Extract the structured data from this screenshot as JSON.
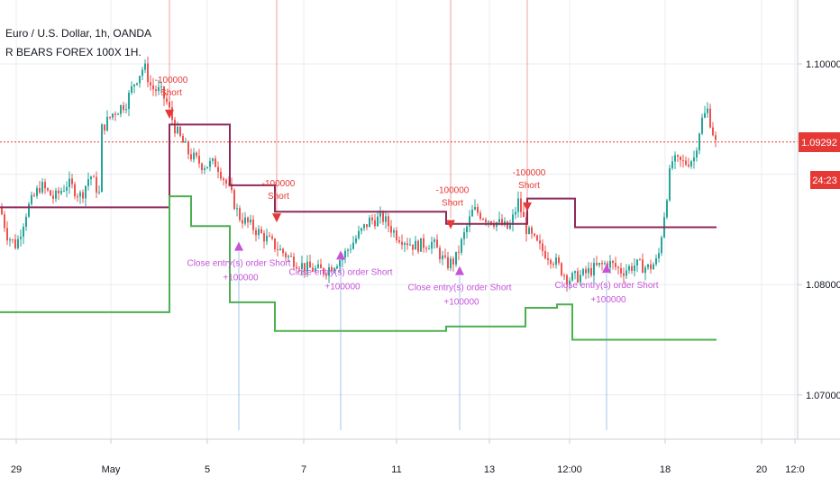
{
  "header": {
    "symbol": "Euro / U.S. Dollar, 1h, OANDA",
    "strategy": "R BEARS FOREX 100X 1H."
  },
  "colors": {
    "bull": "#26a69a",
    "bear": "#ef5350",
    "trade_line": "#8e2a5a",
    "stop_line": "#4caf50",
    "short_signal": "#e53935",
    "close_signal": "#c653d9",
    "current_price_line": "#e53935",
    "grid": "#e8ecf0"
  },
  "chart_data": {
    "type": "candlestick",
    "instrument": "Euro / U.S. Dollar",
    "interval": "1h",
    "source": "OANDA",
    "ylim": [
      1.0645,
      1.1055
    ],
    "y_ticks": [
      "1.10000",
      "1.08000",
      "1.07000"
    ],
    "x_ticks": [
      "29",
      "May",
      "5",
      "7",
      "11",
      "13",
      "12:00",
      "18",
      "20",
      "12:0"
    ],
    "last_price": "1.09292",
    "countdown": "24:23",
    "price_path": [
      [
        0,
        1.087
      ],
      [
        8,
        1.0845
      ],
      [
        18,
        1.0835
      ],
      [
        30,
        1.0868
      ],
      [
        45,
        1.089
      ],
      [
        60,
        1.0878
      ],
      [
        75,
        1.0892
      ],
      [
        90,
        1.088
      ],
      [
        100,
        1.09
      ],
      [
        110,
        1.0882
      ],
      [
        112,
        1.094
      ],
      [
        125,
        1.0955
      ],
      [
        140,
        1.0965
      ],
      [
        150,
        1.0985
      ],
      [
        160,
        1.0998
      ],
      [
        168,
        1.0978
      ],
      [
        178,
        1.0975
      ],
      [
        185,
        1.0965
      ],
      [
        195,
        1.094
      ],
      [
        210,
        1.0918
      ],
      [
        225,
        1.0908
      ],
      [
        240,
        1.091
      ],
      [
        255,
        1.0885
      ],
      [
        265,
        1.0862
      ],
      [
        280,
        1.0852
      ],
      [
        295,
        1.0842
      ],
      [
        305,
        1.0835
      ],
      [
        320,
        1.0825
      ],
      [
        340,
        1.0815
      ],
      [
        360,
        1.0812
      ],
      [
        380,
        1.0825
      ],
      [
        395,
        1.0842
      ],
      [
        410,
        1.0858
      ],
      [
        425,
        1.086
      ],
      [
        440,
        1.0845
      ],
      [
        460,
        1.0835
      ],
      [
        480,
        1.0838
      ],
      [
        495,
        1.0818
      ],
      [
        505,
        1.0822
      ],
      [
        515,
        1.0845
      ],
      [
        525,
        1.0868
      ],
      [
        540,
        1.086
      ],
      [
        555,
        1.0855
      ],
      [
        565,
        1.085
      ],
      [
        575,
        1.0875
      ],
      [
        585,
        1.0848
      ],
      [
        600,
        1.0832
      ],
      [
        615,
        1.0822
      ],
      [
        630,
        1.0805
      ],
      [
        645,
        1.0808
      ],
      [
        660,
        1.0815
      ],
      [
        675,
        1.082
      ],
      [
        690,
        1.0812
      ],
      [
        705,
        1.0818
      ],
      [
        720,
        1.0815
      ],
      [
        730,
        1.0822
      ],
      [
        738,
        1.087
      ],
      [
        745,
        1.0912
      ],
      [
        760,
        1.091
      ],
      [
        770,
        1.0915
      ],
      [
        778,
        1.0948
      ],
      [
        785,
        1.0958
      ],
      [
        795,
        1.0925
      ]
    ],
    "series": [
      {
        "name": "trade_level",
        "steps": [
          [
            0,
            1.087
          ],
          [
            188,
            1.087
          ],
          [
            188,
            1.0945
          ],
          [
            255,
            1.0945
          ],
          [
            255,
            1.089
          ],
          [
            305,
            1.089
          ],
          [
            305,
            1.0866
          ],
          [
            495,
            1.0866
          ],
          [
            495,
            1.0855
          ],
          [
            585,
            1.0855
          ],
          [
            585,
            1.0878
          ],
          [
            638,
            1.0878
          ],
          [
            638,
            1.0852
          ],
          [
            795,
            1.0852
          ]
        ]
      },
      {
        "name": "stop_level",
        "steps": [
          [
            0,
            1.0775
          ],
          [
            188,
            1.0775
          ],
          [
            188,
            1.088
          ],
          [
            212,
            1.088
          ],
          [
            212,
            1.0853
          ],
          [
            255,
            1.0853
          ],
          [
            255,
            1.0784
          ],
          [
            305,
            1.0784
          ],
          [
            305,
            1.0758
          ],
          [
            495,
            1.0758
          ],
          [
            495,
            1.0762
          ],
          [
            583,
            1.0762
          ],
          [
            583,
            1.0779
          ],
          [
            618,
            1.0779
          ],
          [
            618,
            1.0782
          ],
          [
            635,
            1.0782
          ],
          [
            635,
            1.075
          ],
          [
            795,
            1.075
          ]
        ]
      }
    ],
    "entries": [
      {
        "qty": "-100000",
        "label": "Short",
        "x": 188,
        "price": 1.0952
      },
      {
        "qty": "-100000",
        "label": "Short",
        "x": 307,
        "price": 1.0858
      },
      {
        "qty": "-100000",
        "label": "Short",
        "x": 500,
        "price": 1.0852
      },
      {
        "qty": "-100000",
        "label": "Short",
        "x": 585,
        "price": 1.0868
      }
    ],
    "exits": [
      {
        "label": "Close entry(s) order Short",
        "qty": "+100000",
        "x": 265,
        "price": 1.0838
      },
      {
        "label": "Close entry(s) order Short",
        "qty": "+100000",
        "x": 378,
        "price": 1.083
      },
      {
        "label": "Close entry(s) order Short",
        "qty": "+100000",
        "x": 510,
        "price": 1.0816
      },
      {
        "label": "Close entry(s) order Short",
        "qty": "+100000",
        "x": 673,
        "price": 1.0818
      }
    ]
  }
}
